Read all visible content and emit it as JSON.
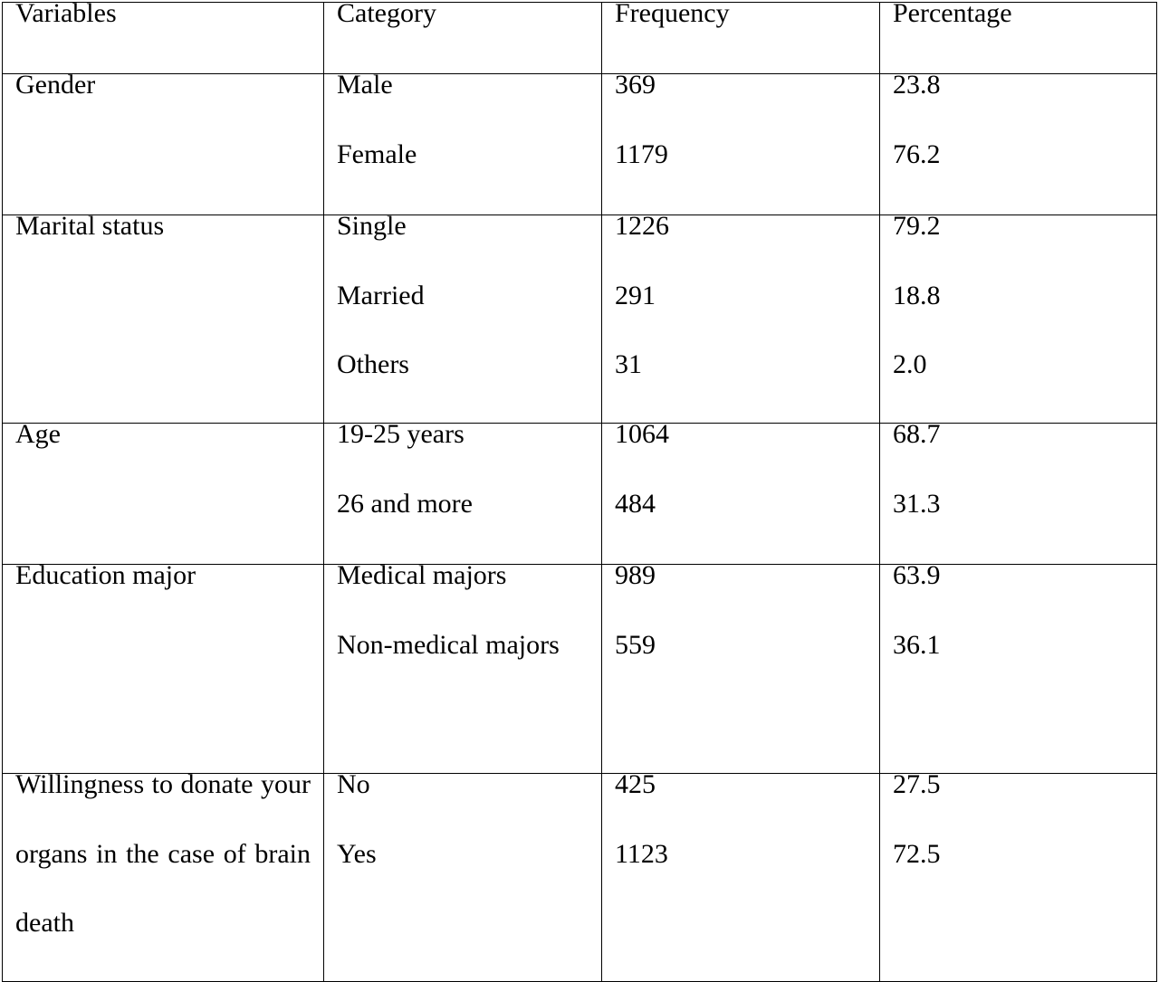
{
  "table": {
    "headers": [
      "Variables",
      "Category",
      "Frequency",
      "Percentage"
    ],
    "rows": [
      {
        "variable": "Gender",
        "categories": [
          "Male",
          "Female"
        ],
        "frequencies": [
          "369",
          "1179"
        ],
        "percentages": [
          "23.8",
          "76.2"
        ]
      },
      {
        "variable": "Marital status",
        "categories": [
          "Single",
          "Married",
          "Others"
        ],
        "frequencies": [
          "1226",
          "291",
          "31"
        ],
        "percentages": [
          "79.2",
          "18.8",
          "2.0"
        ]
      },
      {
        "variable": "Age",
        "categories": [
          "19-25 years",
          "26 and more"
        ],
        "frequencies": [
          "1064",
          "484"
        ],
        "percentages": [
          "68.7",
          "31.3"
        ]
      },
      {
        "variable": "Education major",
        "categories": [
          "Medical majors",
          "Non-medical majors"
        ],
        "frequencies": [
          "989",
          "559"
        ],
        "percentages": [
          "63.9",
          "36.1"
        ]
      },
      {
        "variable": "Willingness to donate your organs in the case of brain death",
        "categories": [
          "No",
          "Yes"
        ],
        "frequencies": [
          "425",
          "1123"
        ],
        "percentages": [
          "27.5",
          "72.5"
        ]
      }
    ]
  }
}
